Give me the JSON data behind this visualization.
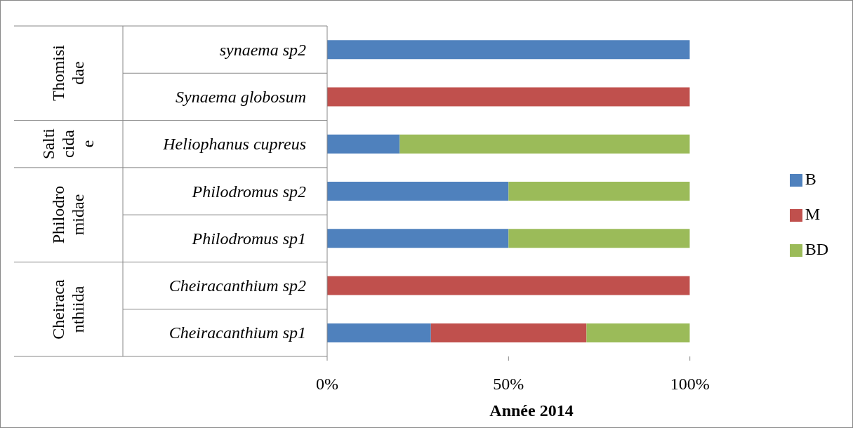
{
  "chart_data": {
    "type": "bar",
    "orientation": "horizontal",
    "stacked": true,
    "xlabel": "Année 2014",
    "categories": [
      "synaema sp2",
      "Synaema globosum",
      "Heliophanus cupreus",
      "Philodromus sp2",
      "Philodromus sp1",
      "Cheiracanthium sp2",
      "Cheiracanthium sp1"
    ],
    "series": [
      {
        "name": "B",
        "color": "#4f81bd",
        "values": [
          100,
          0,
          20,
          50,
          50,
          0,
          28.6
        ]
      },
      {
        "name": "M",
        "color": "#c0504d",
        "values": [
          0,
          100,
          0,
          0,
          0,
          100,
          42.9
        ]
      },
      {
        "name": "BD",
        "color": "#9bbb59",
        "values": [
          0,
          0,
          80,
          50,
          50,
          0,
          28.5
        ]
      }
    ],
    "xlim": [
      0,
      100
    ],
    "xticks": [
      {
        "value": 0,
        "label": "0%"
      },
      {
        "value": 50,
        "label": "50%"
      },
      {
        "value": 100,
        "label": "100%"
      }
    ],
    "annotations": [
      "Thomisidae",
      "Salticidae",
      "Philodromidae",
      "Cheiracanthiida"
    ],
    "legend": "right"
  }
}
